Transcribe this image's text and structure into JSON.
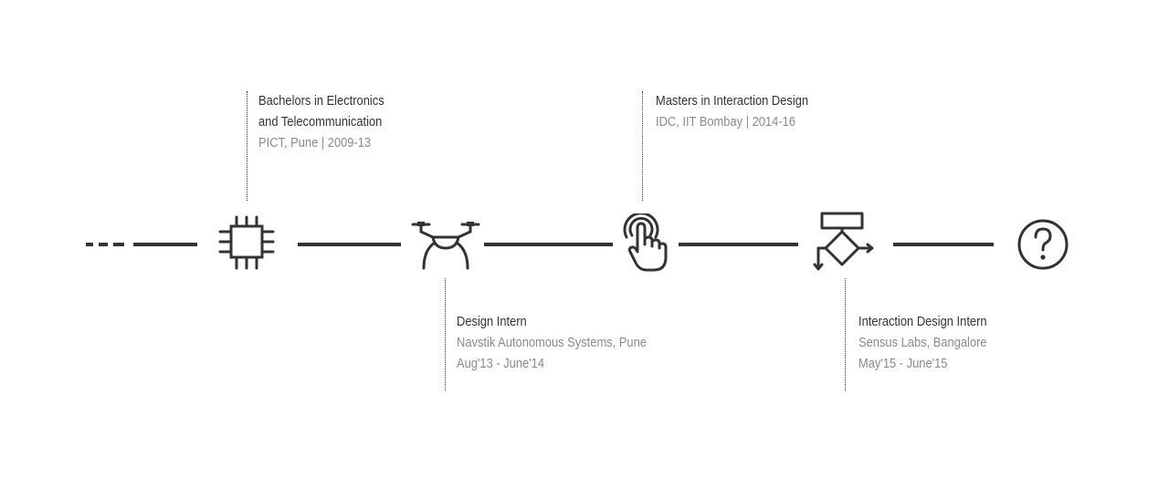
{
  "timeline": {
    "milestones": [
      {
        "icon": "chip-icon",
        "position": "above",
        "title_lines": [
          "Bachelors in Electronics",
          "and Telecommunication"
        ],
        "detail_lines": [
          "PICT, Pune | 2009-13"
        ]
      },
      {
        "icon": "drone-icon",
        "position": "below",
        "title_lines": [
          "Design Intern"
        ],
        "detail_lines": [
          "Navstik Autonomous Systems, Pune",
          "Aug'13 - June'14"
        ]
      },
      {
        "icon": "touch-gesture-icon",
        "position": "above",
        "title_lines": [
          "Masters in Interaction Design"
        ],
        "detail_lines": [
          "IDC, IIT Bombay | 2014-16"
        ]
      },
      {
        "icon": "flowchart-icon",
        "position": "below",
        "title_lines": [
          "Interaction Design Intern"
        ],
        "detail_lines": [
          "Sensus Labs, Bangalore",
          "May'15 - June'15"
        ]
      },
      {
        "icon": "question-mark-icon",
        "position": "none",
        "title_lines": [],
        "detail_lines": []
      }
    ]
  },
  "colors": {
    "line": "#333333",
    "title_text": "#333333",
    "detail_text": "#8a8a8a",
    "background": "#ffffff"
  }
}
